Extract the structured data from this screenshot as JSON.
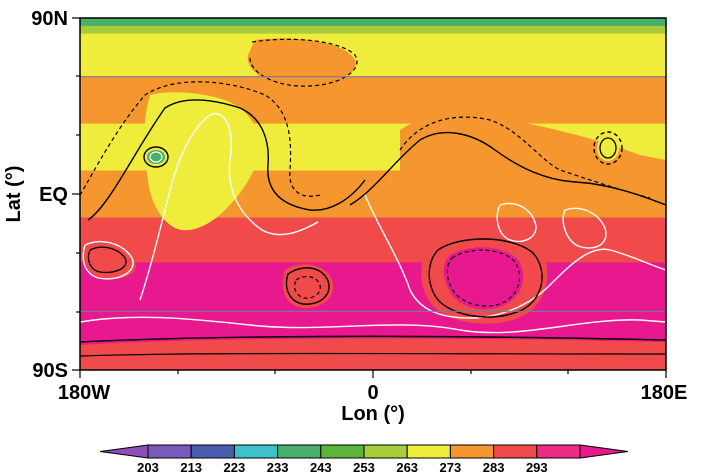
{
  "chart_data": {
    "type": "heatmap",
    "map_kind": "filled contour map of temperature with overlaid contour lines",
    "xlabel": "Lon (°)",
    "ylabel": "Lat (°)",
    "x_ticks": [
      "180W",
      "0",
      "180E"
    ],
    "y_ticks": [
      "90N",
      "EQ",
      "90S"
    ],
    "xlim": [
      -180,
      180
    ],
    "ylim": [
      -90,
      90
    ],
    "colorbar": {
      "levels": [
        203,
        213,
        223,
        233,
        243,
        253,
        263,
        273,
        283,
        293
      ],
      "labels": [
        "203",
        "213",
        "223",
        "233",
        "243",
        "253",
        "263",
        "273",
        "283",
        "293"
      ],
      "colors": [
        "#8e4fb5",
        "#7a5ab8",
        "#4a5eb0",
        "#3ec1c8",
        "#48b06a",
        "#5ab53a",
        "#a8cc3a",
        "#f0ec3c",
        "#f5962e",
        "#f04a4a",
        "#ee2c82",
        "#e8188f"
      ]
    },
    "latitude_bands": [
      {
        "lat_top": 90,
        "lat_bottom": 86,
        "color": "#48b06a"
      },
      {
        "lat_top": 86,
        "lat_bottom": 82,
        "color": "#a8cc3a"
      },
      {
        "lat_top": 82,
        "lat_bottom": 60,
        "color": "#f0ec3c"
      },
      {
        "lat_top": 60,
        "lat_bottom": 36,
        "color": "#f5962e"
      },
      {
        "lat_top": 36,
        "lat_bottom": 12,
        "color": "#f0ec3c"
      },
      {
        "lat_top": 12,
        "lat_bottom": -12,
        "color": "#f5962e"
      },
      {
        "lat_top": -12,
        "lat_bottom": -35,
        "color": "#f04a4a"
      },
      {
        "lat_top": -35,
        "lat_bottom": -80,
        "color": "#e8188f"
      },
      {
        "lat_top": -80,
        "lat_bottom": -90,
        "color": "#f04a4a"
      }
    ],
    "gridlines_lat": [
      60,
      -60
    ],
    "gridline_color": "#7a7a9a"
  }
}
